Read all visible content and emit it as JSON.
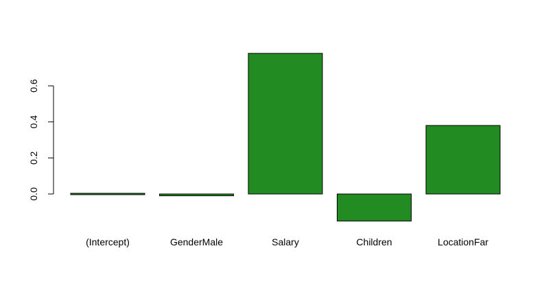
{
  "chart_data": {
    "type": "bar",
    "title": "",
    "xlabel": "",
    "ylabel": "",
    "categories": [
      "(Intercept)",
      "GenderMale",
      "Salary",
      "Children",
      "LocationFar"
    ],
    "values": [
      0.005,
      -0.01,
      0.78,
      -0.15,
      0.38
    ],
    "ylim": [
      -0.2,
      0.8
    ],
    "yticks": [
      0.0,
      0.2,
      0.4,
      0.6
    ],
    "ytick_labels": [
      "0.0",
      "0.2",
      "0.4",
      "0.6"
    ],
    "grid": false,
    "legend": "none",
    "bar_color": "#228B22",
    "bar_border_color": "#000000"
  }
}
